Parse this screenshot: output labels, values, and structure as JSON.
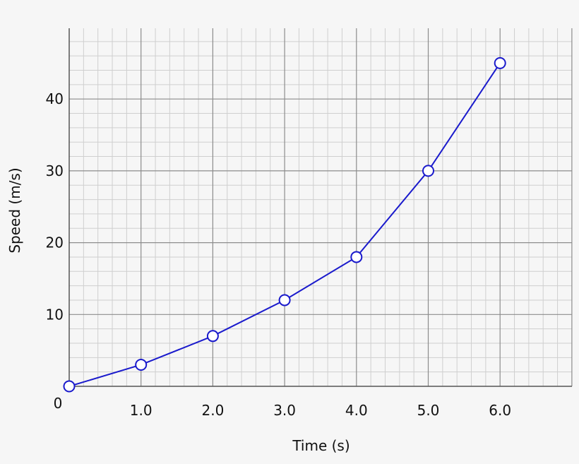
{
  "chart_data": {
    "type": "line",
    "xlabel": "Time (s)",
    "ylabel": "Speed (m/s)",
    "xlim": [
      0,
      7
    ],
    "ylim": [
      0,
      49.5
    ],
    "x_ticks": [
      1,
      2,
      3,
      4,
      5,
      6
    ],
    "x_tick_labels": [
      "1.0",
      "2.0",
      "3.0",
      "4.0",
      "5.0",
      "6.0"
    ],
    "y_ticks": [
      10,
      20,
      30,
      40
    ],
    "y_tick_labels": [
      "10",
      "20",
      "30",
      "40"
    ],
    "origin_label": "0",
    "grid": true,
    "series": [
      {
        "x": [
          0,
          1,
          2,
          3,
          4,
          5,
          6
        ],
        "y": [
          0,
          3,
          7,
          12,
          18,
          30,
          45
        ]
      }
    ]
  },
  "colors": {
    "background": "#f6f6f6",
    "line": "#1a1acc",
    "marker_fill": "#ffffff",
    "major_grid": "#8c8c8c",
    "minor_grid": "#cfcfcf",
    "axis": "#555555"
  }
}
